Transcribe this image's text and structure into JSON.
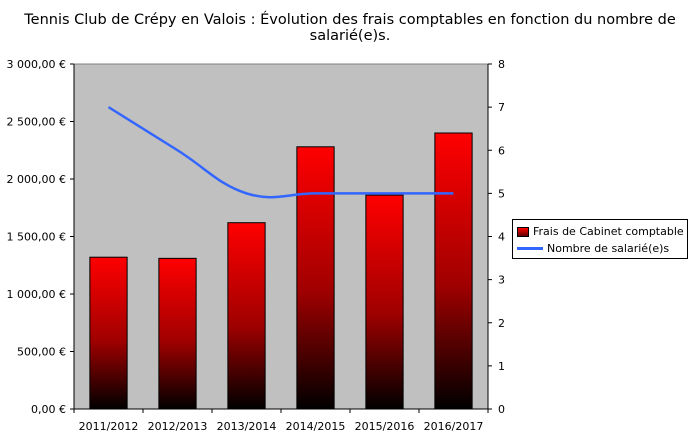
{
  "chart_data": {
    "type": "bar",
    "title": "Tennis Club de Crépy en Valois : Évolution des frais comptables en fonction du nombre de salarié(e)s.",
    "categories": [
      "2011/2012",
      "2012/2013",
      "2013/2014",
      "2014/2015",
      "2015/2016",
      "2016/2017"
    ],
    "series": [
      {
        "name": "Frais de Cabinet comptable",
        "kind": "bar",
        "axis": "left",
        "color": "#ff0000",
        "values": [
          1320,
          1310,
          1620,
          2280,
          1860,
          2400
        ]
      },
      {
        "name": "Nombre de salarié(e)s",
        "kind": "line",
        "axis": "right",
        "color": "#3366ff",
        "values": [
          7,
          6,
          5,
          5,
          5,
          5
        ]
      }
    ],
    "y_left": {
      "lim": [
        0,
        3000
      ],
      "ticks": [
        0,
        500,
        1000,
        1500,
        2000,
        2500,
        3000
      ],
      "tick_labels": [
        "0,00 €",
        "500,00 €",
        "1 000,00 €",
        "1 500,00 €",
        "2 000,00 €",
        "2 500,00 €",
        "3 000,00 €"
      ]
    },
    "y_right": {
      "lim": [
        0,
        8
      ],
      "ticks": [
        0,
        1,
        2,
        3,
        4,
        5,
        6,
        7,
        8
      ],
      "tick_labels": [
        "0",
        "1",
        "2",
        "3",
        "4",
        "5",
        "6",
        "7",
        "8"
      ]
    },
    "plot_background": "#c0c0c0",
    "grid": false,
    "legend_position": "right"
  }
}
